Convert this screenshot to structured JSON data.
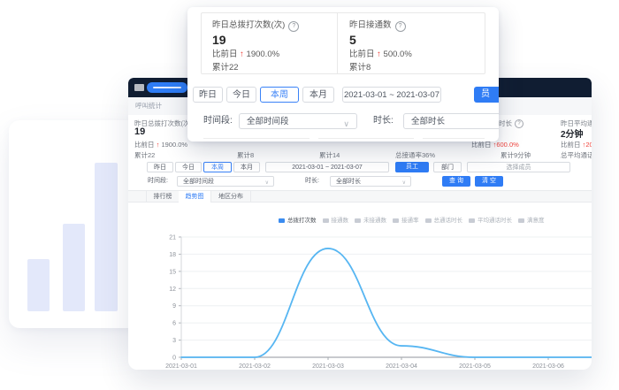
{
  "icons": {
    "help": "?",
    "dropdown": "∨",
    "arrow_up": "↑"
  },
  "popup": {
    "stats": [
      {
        "label": "昨日总拨打次数(次)",
        "value": "19",
        "compare_prefix": "比前日",
        "compare_value": "1900.0%",
        "total": "累计22"
      },
      {
        "label": "昨日接通数",
        "value": "5",
        "compare_prefix": "比前日",
        "compare_value": "500.0%",
        "total": "累计8"
      }
    ],
    "range_buttons": [
      "昨日",
      "今日",
      "本周",
      "本月"
    ],
    "active_range": "本周",
    "date_range": "2021-03-01  ~  2021-03-07",
    "cut_button_label": "员",
    "period_label": "时间段:",
    "period_value": "全部时间段",
    "duration_label": "时长:",
    "duration_value": "全部时长"
  },
  "panel": {
    "header_title": "呼叫统计",
    "stat_col1": {
      "label": "昨日总拨打次数(次)",
      "value": "19",
      "compare_prefix": "比前日",
      "compare_value": "1900.0%",
      "total": "累计22"
    },
    "fragments": {
      "col2_total": "累计8",
      "col3_total": "累计14",
      "col4_total": "总接通率36%",
      "col5_header": "时长",
      "col5_compare_prefix": "比前日",
      "col5_compare_value": "600.0%",
      "col5_total": "累计9分钟",
      "col6_header": "昨日平均通",
      "col6_value": "2分钟",
      "col6_compare_prefix": "比前日",
      "col6_compare_value": "20",
      "col6_total": "总平均通话"
    },
    "range_buttons": [
      "昨日",
      "今日",
      "本周",
      "本月"
    ],
    "active_range": "本周",
    "date_range": "2021-03-01 ~ 2021-03-07",
    "employee_button": "员工",
    "department_button": "部门",
    "member_placeholder": "选择成员",
    "period_label": "时间段:",
    "period_value": "全部时间段",
    "duration_label": "时长:",
    "duration_value": "全部时长",
    "search_button": "查 询",
    "clear_button": "清 空",
    "tabs": [
      "排行榜",
      "趋势图",
      "地区分布"
    ],
    "active_tab": "趋势图"
  },
  "chart_data": {
    "type": "line",
    "title": "",
    "x": [
      "2021-03-01",
      "2021-03-02",
      "2021-03-03",
      "2021-03-04",
      "2021-03-05",
      "2021-03-06",
      "2021-03-07"
    ],
    "series": [
      {
        "name": "总拨打次数",
        "values": [
          0,
          0,
          19,
          2,
          0,
          0,
          0
        ]
      }
    ],
    "legend": [
      {
        "name": "总拨打次数",
        "active": true
      },
      {
        "name": "接通数",
        "active": false
      },
      {
        "name": "未接通数",
        "active": false
      },
      {
        "name": "接通率",
        "active": false
      },
      {
        "name": "总通话时长",
        "active": false
      },
      {
        "name": "平均通话时长",
        "active": false
      },
      {
        "name": "满意度",
        "active": false
      }
    ],
    "ylim": [
      0,
      21
    ],
    "yticks": [
      0,
      3,
      6,
      9,
      12,
      15,
      18,
      21
    ],
    "smooth": true,
    "grid": true,
    "legend_position": "top",
    "line_color": "#57b6f2",
    "legend_active_color": "#3b8cf0",
    "legend_inactive_color": "#c8ccd4",
    "xlabel": "",
    "ylabel": ""
  }
}
